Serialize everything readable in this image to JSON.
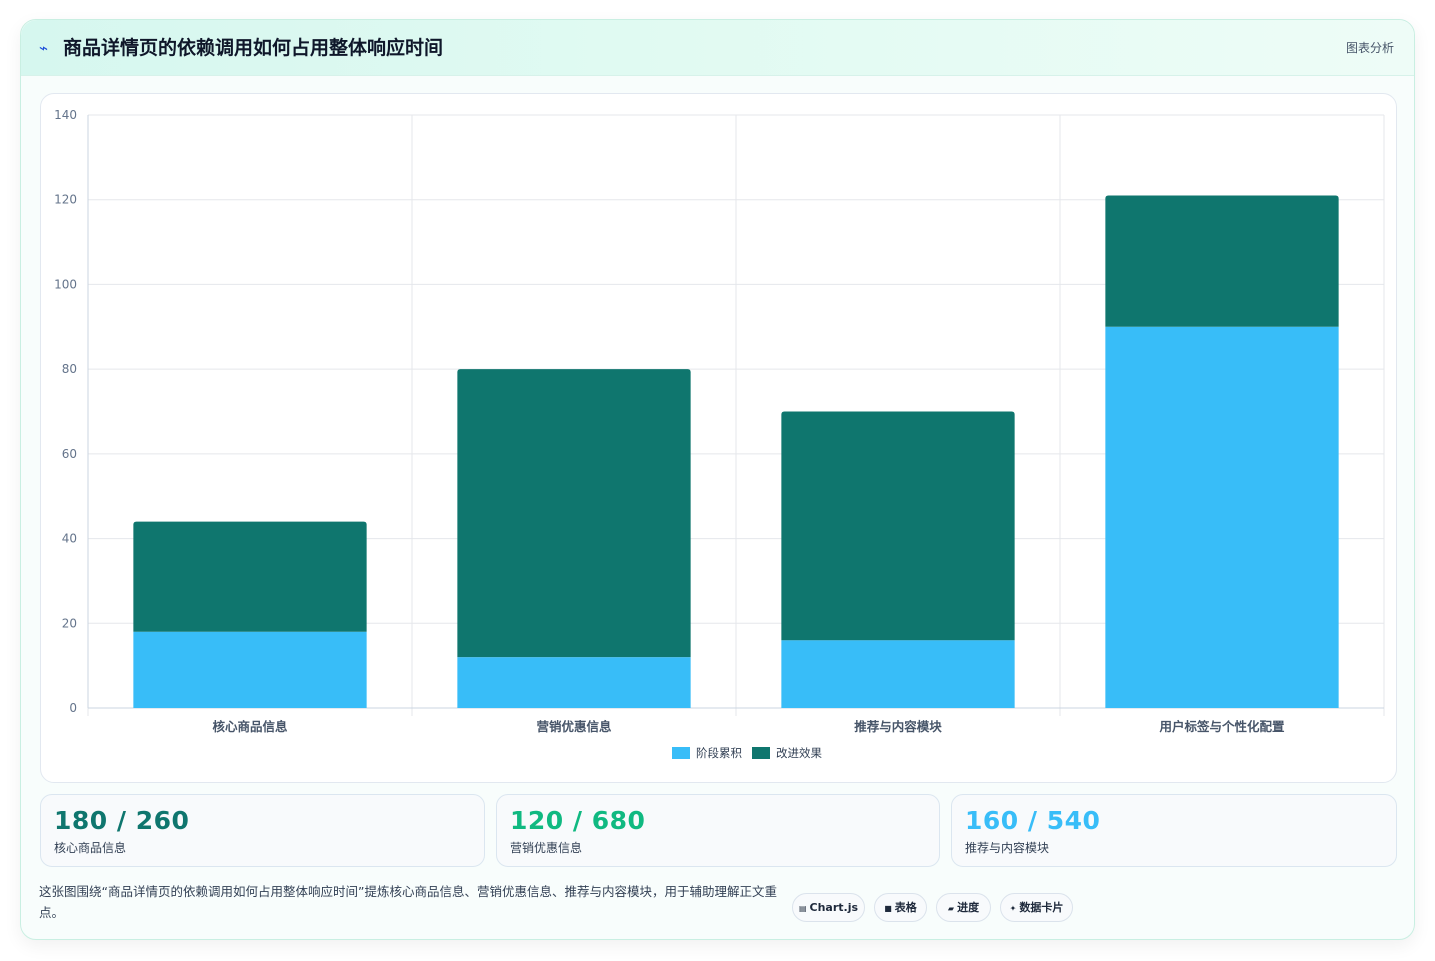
{
  "header": {
    "icon": "trend-line-icon",
    "title": "商品详情页的依赖调用如何占用整体响应时间",
    "tag": "图表分析"
  },
  "chart_data": {
    "type": "bar",
    "stacked": true,
    "categories": [
      "核心商品信息",
      "营销优惠信息",
      "推荐与内容模块",
      "用户标签与个性化配置"
    ],
    "series": [
      {
        "name": "阶段累积",
        "color": "#38bdf8",
        "values": [
          18,
          12,
          16,
          90
        ]
      },
      {
        "name": "改进效果",
        "color": "#0f766e",
        "values": [
          26,
          68,
          54,
          31
        ]
      }
    ],
    "ylim": [
      0,
      140
    ],
    "yticks": [
      0,
      20,
      40,
      60,
      80,
      100,
      120,
      140
    ],
    "grid": true,
    "legend": "bottom"
  },
  "stats": [
    {
      "value": "180 / 260",
      "label": "核心商品信息",
      "color": "#0f766e"
    },
    {
      "value": "120 / 680",
      "label": "营销优惠信息",
      "color": "#10b981"
    },
    {
      "value": "160 / 540",
      "label": "推荐与内容模块",
      "color": "#38bdf8"
    }
  ],
  "note": "这张图围绕“商品详情页的依赖调用如何占用整体响应时间”提炼核心商品信息、营销优惠信息、推荐与内容模块，用于辅助理解正文重点。",
  "pills": [
    {
      "icon": "chart-icon",
      "glyph": "▤",
      "label": "Chart.js"
    },
    {
      "icon": "table-icon",
      "glyph": "■",
      "label": "表格"
    },
    {
      "icon": "progress-icon",
      "glyph": "▰",
      "label": "进度"
    },
    {
      "icon": "sparkle-icon",
      "glyph": "✦",
      "label": "数据卡片"
    }
  ]
}
